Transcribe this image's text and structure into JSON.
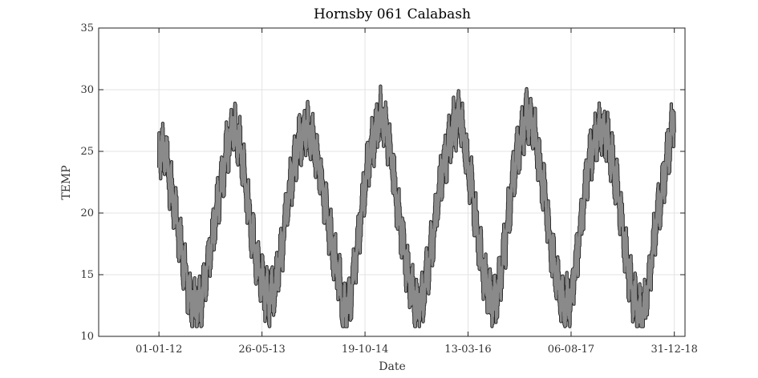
{
  "chart_data": {
    "type": "scatter",
    "title": "Hornsby 061 Calabash",
    "xlabel": "Date",
    "ylabel": "TEMP",
    "ylim": [
      10,
      35
    ],
    "yticks": [
      10,
      15,
      20,
      25,
      30,
      35
    ],
    "xlim": [
      "2011-03-08",
      "2019-02-22"
    ],
    "xticks": [
      "01-01-12",
      "26-05-13",
      "19-10-14",
      "13-03-16",
      "06-08-17",
      "31-12-18"
    ],
    "grid": true,
    "series_color": "#8a8a8a",
    "outline_color": "#222222",
    "series": [
      {
        "x": [
          "2012-01-01",
          "2012-02-01",
          "2012-03-01",
          "2012-04-01",
          "2012-05-01",
          "2012-06-01",
          "2012-07-01",
          "2012-08-01",
          "2012-09-01",
          "2012-10-01",
          "2012-11-01",
          "2012-12-01",
          "2013-01-01",
          "2013-02-01",
          "2013-03-01",
          "2013-04-01",
          "2013-05-01",
          "2013-06-01",
          "2013-07-01",
          "2013-08-01",
          "2013-09-01",
          "2013-10-01",
          "2013-11-01",
          "2013-12-01",
          "2014-01-01",
          "2014-02-01",
          "2014-03-01",
          "2014-04-01",
          "2014-05-01",
          "2014-06-01",
          "2014-06-20",
          "2014-07-01",
          "2014-08-01",
          "2014-09-01",
          "2014-10-01",
          "2014-11-01",
          "2014-12-01",
          "2015-01-01",
          "2015-02-01",
          "2015-03-01",
          "2015-04-01",
          "2015-05-01",
          "2015-06-01",
          "2015-07-01",
          "2015-08-01",
          "2015-09-01",
          "2015-10-01",
          "2015-11-01",
          "2015-12-01",
          "2016-01-01",
          "2016-02-01",
          "2016-03-01",
          "2016-04-01",
          "2016-05-01",
          "2016-06-01",
          "2016-07-01",
          "2016-08-01",
          "2016-09-01",
          "2016-10-01",
          "2016-11-01",
          "2016-12-01",
          "2017-01-01",
          "2017-02-01",
          "2017-03-01",
          "2017-04-01",
          "2017-05-01",
          "2017-06-01",
          "2017-07-01",
          "2017-08-01",
          "2017-09-01",
          "2017-10-01",
          "2017-11-01",
          "2017-12-01",
          "2018-01-01",
          "2018-02-01",
          "2018-03-01",
          "2018-04-01",
          "2018-05-01",
          "2018-06-01",
          "2018-07-01",
          "2018-08-01",
          "2018-09-01",
          "2018-10-01",
          "2018-11-01",
          "2018-12-01",
          "2018-12-31"
        ],
        "y": [
          25,
          25,
          22,
          19,
          16,
          13,
          12.5,
          13,
          16,
          19,
          22,
          25,
          27,
          26,
          23,
          19,
          16,
          14,
          13,
          14,
          17,
          21,
          24,
          26,
          27,
          26,
          24,
          21,
          18,
          15.5,
          14,
          12,
          12.5,
          16,
          20,
          24,
          26,
          28,
          27,
          24,
          20,
          17,
          14,
          12.5,
          13,
          16,
          19,
          23,
          25,
          27,
          28,
          25,
          22,
          18,
          15,
          13,
          13,
          16,
          20,
          24,
          26,
          28,
          27,
          24,
          21,
          17,
          14,
          12.5,
          13,
          16,
          20,
          24,
          26,
          27,
          26,
          24,
          21,
          17,
          14,
          12,
          12,
          15,
          19,
          22,
          25,
          28
        ]
      }
    ]
  }
}
